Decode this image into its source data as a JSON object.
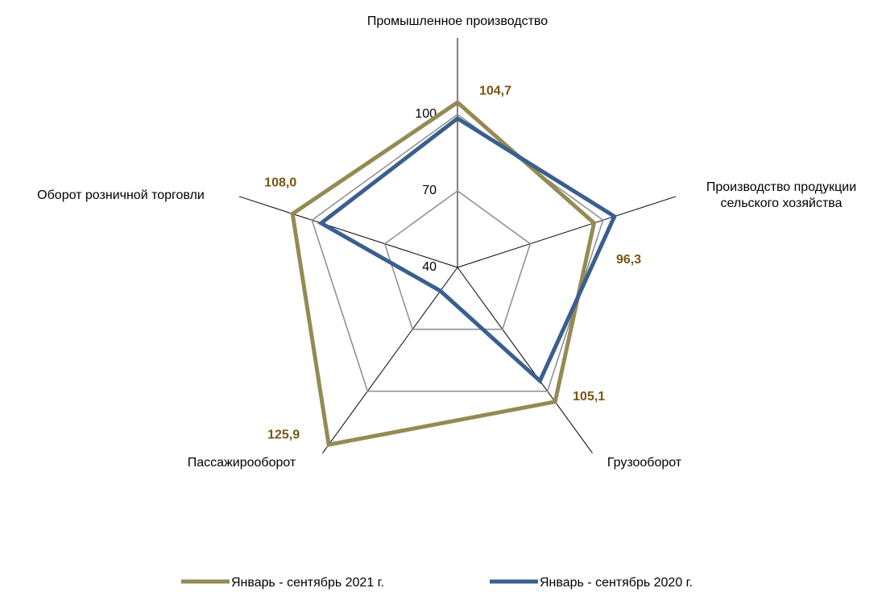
{
  "chart_data": {
    "type": "radar",
    "categories": [
      "Промышленное производство",
      "Производство продукции сельского хозяйства",
      "Грузооборот",
      "Пассажирооборот",
      "Оборот розничной торговли"
    ],
    "series": [
      {
        "name": "Январь - сентябрь 2021 г.",
        "color": "#948a54",
        "values": [
          104.7,
          96.3,
          105.1,
          125.9,
          108.0
        ],
        "value_labels": [
          "104,7",
          "96,3",
          "105,1",
          "125,9",
          "108,0"
        ]
      },
      {
        "name": "Январь - сентябрь 2020 г.",
        "color": "#3a5f8f",
        "values": [
          98.4,
          104.7,
          95.0,
          51.4,
          96.2
        ]
      }
    ],
    "rlim": [
      40,
      130
    ],
    "rticks": [
      40,
      70,
      100
    ],
    "grid": true,
    "legend": "bottom"
  }
}
